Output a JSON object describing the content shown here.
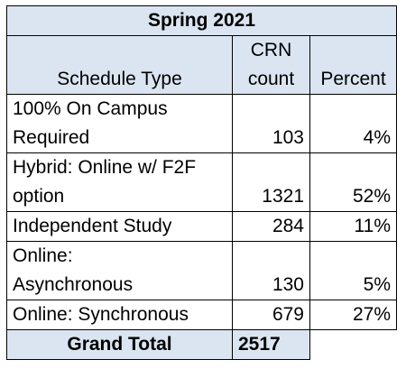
{
  "table": {
    "title": "Spring 2021",
    "headers": {
      "schedule_type": "Schedule Type",
      "crn_count_line1": "CRN",
      "crn_count_line2": "count",
      "percent": "Percent"
    },
    "rows": [
      {
        "type_line1": "100% On Campus",
        "type_line2": "Required",
        "count": "103",
        "percent": "4%"
      },
      {
        "type_line1": "Hybrid: Online w/ F2F",
        "type_line2": "option",
        "count": "1321",
        "percent": "52%"
      },
      {
        "type_line1": "Independent Study",
        "type_line2": "",
        "count": "284",
        "percent": "11%"
      },
      {
        "type_line1": "Online:",
        "type_line2": "Asynchronous",
        "count": "130",
        "percent": "5%"
      },
      {
        "type_line1": "Online: Synchronous",
        "type_line2": "",
        "count": "679",
        "percent": "27%"
      }
    ],
    "total": {
      "label": "Grand Total",
      "value": "2517"
    }
  }
}
